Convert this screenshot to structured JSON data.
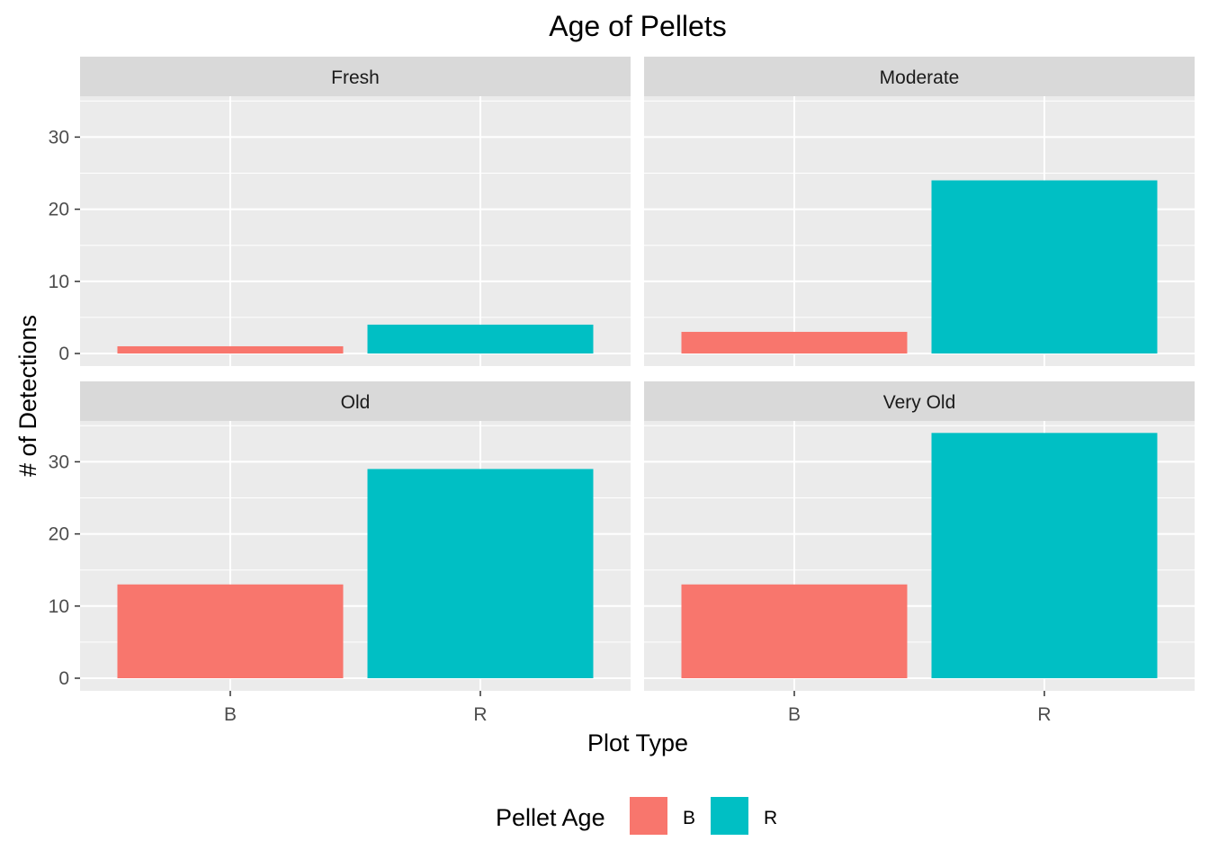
{
  "chart_data": {
    "type": "bar",
    "title": "Age of Pellets",
    "xlabel": "Plot Type",
    "ylabel": "# of Detections",
    "categories": [
      "B",
      "R"
    ],
    "ylim": [
      0,
      35
    ],
    "yticks": [
      0,
      10,
      20,
      30
    ],
    "colors": {
      "B": "#F8766D",
      "R": "#00BFC4"
    },
    "panel_background": "#EBEBEB",
    "strip_background": "#D9D9D9",
    "grid": true,
    "facets": [
      {
        "label": "Fresh",
        "values": [
          1,
          4
        ]
      },
      {
        "label": "Moderate",
        "values": [
          3,
          24
        ]
      },
      {
        "label": "Old",
        "values": [
          13,
          29
        ]
      },
      {
        "label": "Very Old",
        "values": [
          13,
          34
        ]
      }
    ],
    "legend": {
      "title": "Pellet Age",
      "position": "bottom",
      "entries": [
        "B",
        "R"
      ]
    }
  }
}
